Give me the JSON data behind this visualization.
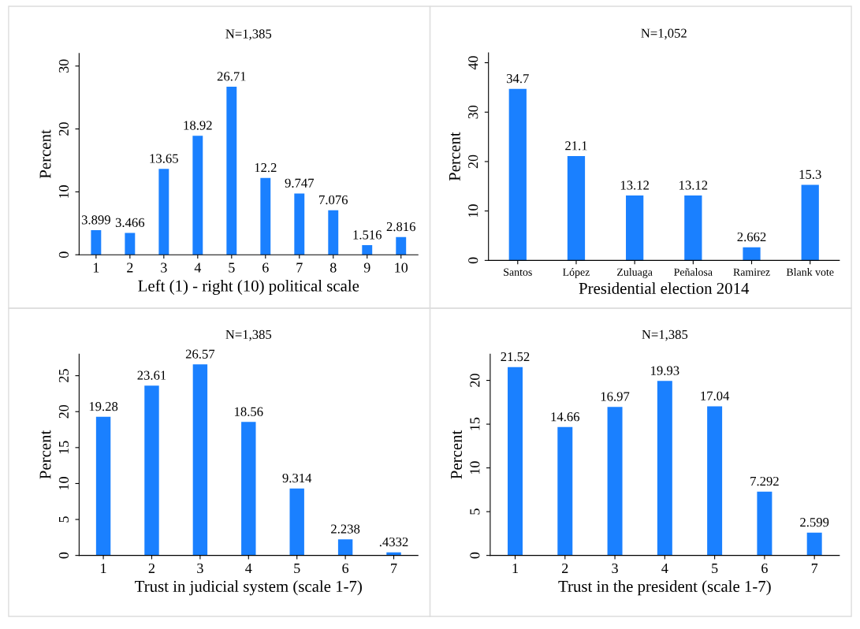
{
  "chart_data": [
    {
      "type": "bar",
      "title": "N=1,385",
      "xlabel": "Left (1) - right (10) political scale",
      "ylabel": "Percent",
      "categories": [
        "1",
        "2",
        "3",
        "4",
        "5",
        "6",
        "7",
        "8",
        "9",
        "10"
      ],
      "values": [
        3.899,
        3.466,
        13.65,
        18.92,
        26.71,
        12.2,
        9.747,
        7.076,
        1.516,
        2.816
      ],
      "value_labels": [
        "3.899",
        "3.466",
        "13.65",
        "18.92",
        "26.71",
        "12.2",
        "9.747",
        "7.076",
        "1.516",
        "2.816"
      ],
      "color": "#1a80ff",
      "ylim": [
        0,
        32
      ],
      "yticks": [
        0,
        10,
        20,
        30
      ],
      "grid": false,
      "legend": false
    },
    {
      "type": "bar",
      "title": "N=1,052",
      "xlabel": "Presidential election 2014",
      "ylabel": "Percent",
      "categories": [
        "Santos",
        "López",
        "Zuluaga",
        "Peñalosa",
        "Ramirez",
        "Blank vote"
      ],
      "values": [
        34.7,
        21.1,
        13.12,
        13.12,
        2.662,
        15.3
      ],
      "value_labels": [
        "34.7",
        "21.1",
        "13.12",
        "13.12",
        "2.662",
        "15.3"
      ],
      "color": "#1a80ff",
      "ylim": [
        0,
        42
      ],
      "yticks": [
        0,
        10,
        20,
        30,
        40
      ],
      "grid": false,
      "legend": false
    },
    {
      "type": "bar",
      "title": "N=1,385",
      "xlabel": "Trust in judicial system (scale 1-7)",
      "ylabel": "Percent",
      "categories": [
        "1",
        "2",
        "3",
        "4",
        "5",
        "6",
        "7"
      ],
      "values": [
        19.28,
        23.61,
        26.57,
        18.56,
        9.314,
        2.238,
        0.4332
      ],
      "value_labels": [
        "19.28",
        "23.61",
        "26.57",
        "18.56",
        "9.314",
        "2.238",
        ".4332"
      ],
      "color": "#1a80ff",
      "ylim": [
        0,
        28
      ],
      "yticks": [
        0,
        5,
        10,
        15,
        20,
        25
      ],
      "grid": false,
      "legend": false
    },
    {
      "type": "bar",
      "title": "N=1,385",
      "xlabel": "Trust in the president (scale 1-7)",
      "ylabel": "Percent",
      "categories": [
        "1",
        "2",
        "3",
        "4",
        "5",
        "6",
        "7"
      ],
      "values": [
        21.52,
        14.66,
        16.97,
        19.93,
        17.04,
        7.292,
        2.599
      ],
      "value_labels": [
        "21.52",
        "14.66",
        "16.97",
        "19.93",
        "17.04",
        "7.292",
        "2.599"
      ],
      "color": "#1a80ff",
      "ylim": [
        0,
        23
      ],
      "yticks": [
        0,
        5,
        10,
        15,
        20
      ],
      "grid": false,
      "legend": false
    }
  ]
}
